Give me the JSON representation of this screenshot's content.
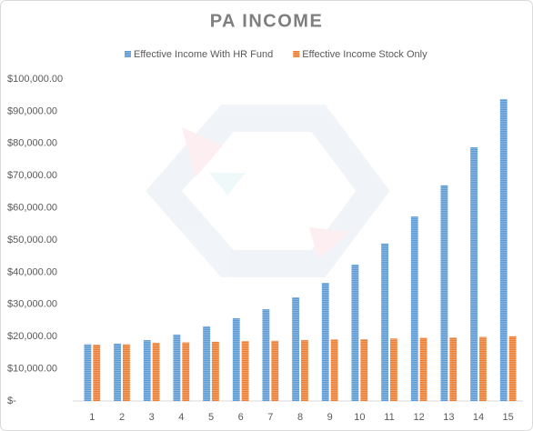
{
  "chart_data": {
    "type": "bar",
    "title": "PA INCOME",
    "categories": [
      "1",
      "2",
      "3",
      "4",
      "5",
      "6",
      "7",
      "8",
      "9",
      "10",
      "11",
      "12",
      "13",
      "14",
      "15"
    ],
    "series": [
      {
        "name": "Effective Income With HR Fund",
        "color": "#5b9bd5",
        "values": [
          17600,
          17800,
          18900,
          20600,
          23200,
          25700,
          28500,
          32200,
          36700,
          42400,
          48900,
          57300,
          67000,
          78800,
          93800
        ]
      },
      {
        "name": "Effective Income Stock Only",
        "color": "#ed7d31",
        "values": [
          17500,
          17600,
          18100,
          18200,
          18400,
          18600,
          18700,
          18900,
          19100,
          19200,
          19400,
          19600,
          19700,
          19900,
          20100
        ]
      }
    ],
    "ylim": [
      0,
      100000
    ],
    "yticks": [
      {
        "value": 0,
        "label": "$-"
      },
      {
        "value": 10000,
        "label": "$10,000.00"
      },
      {
        "value": 20000,
        "label": "$20,000.00"
      },
      {
        "value": 30000,
        "label": "$30,000.00"
      },
      {
        "value": 40000,
        "label": "$40,000.00"
      },
      {
        "value": 50000,
        "label": "$50,000.00"
      },
      {
        "value": 60000,
        "label": "$60,000.00"
      },
      {
        "value": 70000,
        "label": "$70,000.00"
      },
      {
        "value": 80000,
        "label": "$80,000.00"
      },
      {
        "value": 90000,
        "label": "$90,000.00"
      },
      {
        "value": 100000,
        "label": "$100,000.00"
      }
    ],
    "legend": "top",
    "grid": false
  }
}
